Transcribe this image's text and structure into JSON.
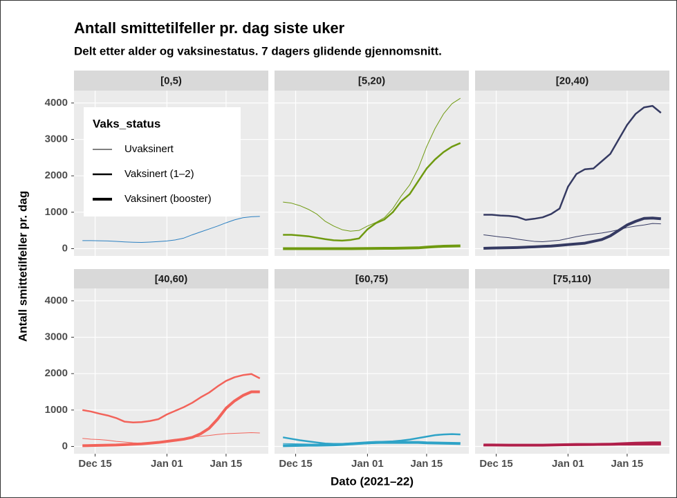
{
  "chart_data": {
    "type": "line",
    "title": "Antall smittetilfeller pr. dag siste uker",
    "subtitle": "Delt etter alder og vaksinestatus. 7 dagers glidende gjennomsnitt.",
    "xlabel": "Dato (2021–22)",
    "ylabel": "Antall smittetilfeller pr. dag",
    "legend": {
      "title": "Vaks_status",
      "position": "top-left"
    },
    "grid": true,
    "x": [
      "Dec 12",
      "Dec 14",
      "Dec 16",
      "Dec 18",
      "Dec 20",
      "Dec 22",
      "Dec 24",
      "Dec 26",
      "Dec 28",
      "Dec 30",
      "Jan 01",
      "Jan 03",
      "Jan 05",
      "Jan 07",
      "Jan 09",
      "Jan 11",
      "Jan 13",
      "Jan 15",
      "Jan 17",
      "Jan 19",
      "Jan 21",
      "Jan 23"
    ],
    "xlim": [
      "Dec 10",
      "Jan 25"
    ],
    "xticks": [
      "Dec 15",
      "Jan 01",
      "Jan 15"
    ],
    "ylim": [
      -200,
      4340
    ],
    "yticks": [
      0,
      1000,
      2000,
      3000,
      4000
    ],
    "facets": [
      {
        "title": "[0,5)",
        "color": "#2a7fc1",
        "series": [
          {
            "name": "Uvaksinert",
            "width": 1,
            "values": [
              220,
              220,
              215,
              210,
              200,
              185,
              175,
              170,
              180,
              195,
              210,
              240,
              290,
              380,
              460,
              540,
              620,
              710,
              790,
              850,
              875,
              885
            ]
          }
        ]
      },
      {
        "title": "[5,20)",
        "color": "#6f9a10",
        "series": [
          {
            "name": "Uvaksinert",
            "width": 1,
            "values": [
              1280,
              1250,
              1180,
              1080,
              950,
              750,
              620,
              520,
              480,
              500,
              620,
              720,
              850,
              1100,
              1450,
              1750,
              2200,
              2800,
              3300,
              3700,
              3980,
              4130
            ]
          },
          {
            "name": "Vaksinert (1–2)",
            "width": 2.5,
            "values": [
              380,
              380,
              360,
              340,
              300,
              260,
              230,
              220,
              240,
              280,
              530,
              700,
              800,
              1000,
              1300,
              1500,
              1850,
              2200,
              2450,
              2650,
              2800,
              2900
            ]
          },
          {
            "name": "Vaksinert (booster)",
            "width": 4,
            "values": [
              0,
              0,
              0,
              0,
              0,
              0,
              0,
              0,
              0,
              2,
              4,
              6,
              8,
              10,
              14,
              18,
              22,
              40,
              55,
              65,
              70,
              75
            ]
          }
        ]
      },
      {
        "title": "[20,40)",
        "color": "#353a62",
        "series": [
          {
            "name": "Uvaksinert",
            "width": 1,
            "values": [
              380,
              350,
              320,
              300,
              260,
              230,
              200,
              190,
              210,
              230,
              280,
              330,
              370,
              400,
              430,
              470,
              520,
              580,
              620,
              650,
              690,
              680
            ]
          },
          {
            "name": "Vaksinert (1–2)",
            "width": 2.5,
            "values": [
              930,
              930,
              910,
              900,
              870,
              790,
              820,
              860,
              950,
              1100,
              1700,
              2050,
              2180,
              2200,
              2400,
              2600,
              3000,
              3400,
              3700,
              3880,
              3920,
              3730
            ]
          },
          {
            "name": "Vaksinert (booster)",
            "width": 4,
            "values": [
              10,
              15,
              20,
              25,
              30,
              40,
              50,
              60,
              70,
              90,
              110,
              130,
              150,
              200,
              250,
              350,
              500,
              650,
              750,
              830,
              840,
              820
            ]
          }
        ]
      },
      {
        "title": "[40,60)",
        "color": "#f2635a",
        "series": [
          {
            "name": "Uvaksinert",
            "width": 1,
            "values": [
              220,
              200,
              190,
              170,
              140,
              120,
              100,
              90,
              95,
              100,
              130,
              170,
              210,
              250,
              280,
              300,
              330,
              350,
              360,
              370,
              380,
              370
            ]
          },
          {
            "name": "Vaksinert (1–2)",
            "width": 2.5,
            "values": [
              1000,
              960,
              900,
              850,
              780,
              680,
              660,
              670,
              700,
              750,
              880,
              980,
              1080,
              1200,
              1350,
              1480,
              1650,
              1800,
              1900,
              1960,
              1990,
              1870
            ]
          },
          {
            "name": "Vaksinert (booster)",
            "width": 4,
            "values": [
              20,
              25,
              30,
              35,
              40,
              50,
              60,
              70,
              90,
              110,
              140,
              170,
              200,
              250,
              350,
              500,
              750,
              1050,
              1250,
              1400,
              1500,
              1500
            ]
          }
        ]
      },
      {
        "title": "[60,75)",
        "color": "#2ea3c7",
        "series": [
          {
            "name": "Uvaksinert",
            "width": 1,
            "values": [
              80,
              75,
              70,
              65,
              60,
              55,
              50,
              50,
              55,
              60,
              70,
              80,
              90,
              90,
              90,
              95,
              100,
              100,
              100,
              100,
              100,
              100
            ]
          },
          {
            "name": "Vaksinert (1–2)",
            "width": 2.5,
            "values": [
              250,
              210,
              170,
              140,
              110,
              80,
              70,
              70,
              80,
              90,
              110,
              120,
              130,
              140,
              160,
              190,
              230,
              270,
              310,
              330,
              340,
              330
            ]
          },
          {
            "name": "Vaksinert (booster)",
            "width": 4,
            "values": [
              20,
              25,
              30,
              35,
              35,
              40,
              45,
              55,
              70,
              85,
              100,
              110,
              110,
              110,
              110,
              110,
              110,
              100,
              95,
              90,
              85,
              80
            ]
          }
        ]
      },
      {
        "title": "[75,110)",
        "color": "#b01f4a",
        "series": [
          {
            "name": "Uvaksinert",
            "width": 1,
            "values": [
              20,
              20,
              18,
              18,
              17,
              16,
              16,
              17,
              18,
              20,
              22,
              24,
              26,
              28,
              30,
              32,
              34,
              35,
              36,
              36,
              35,
              35
            ]
          },
          {
            "name": "Vaksinert (1–2)",
            "width": 2.5,
            "values": [
              30,
              30,
              30,
              28,
              26,
              25,
              25,
              28,
              32,
              38,
              45,
              50,
              50,
              50,
              52,
              55,
              58,
              62,
              65,
              68,
              70,
              70
            ]
          },
          {
            "name": "Vaksinert (booster)",
            "width": 4,
            "values": [
              40,
              40,
              38,
              36,
              35,
              34,
              34,
              36,
              40,
              45,
              50,
              55,
              55,
              55,
              58,
              62,
              70,
              80,
              90,
              95,
              100,
              100
            ]
          }
        ]
      }
    ]
  }
}
